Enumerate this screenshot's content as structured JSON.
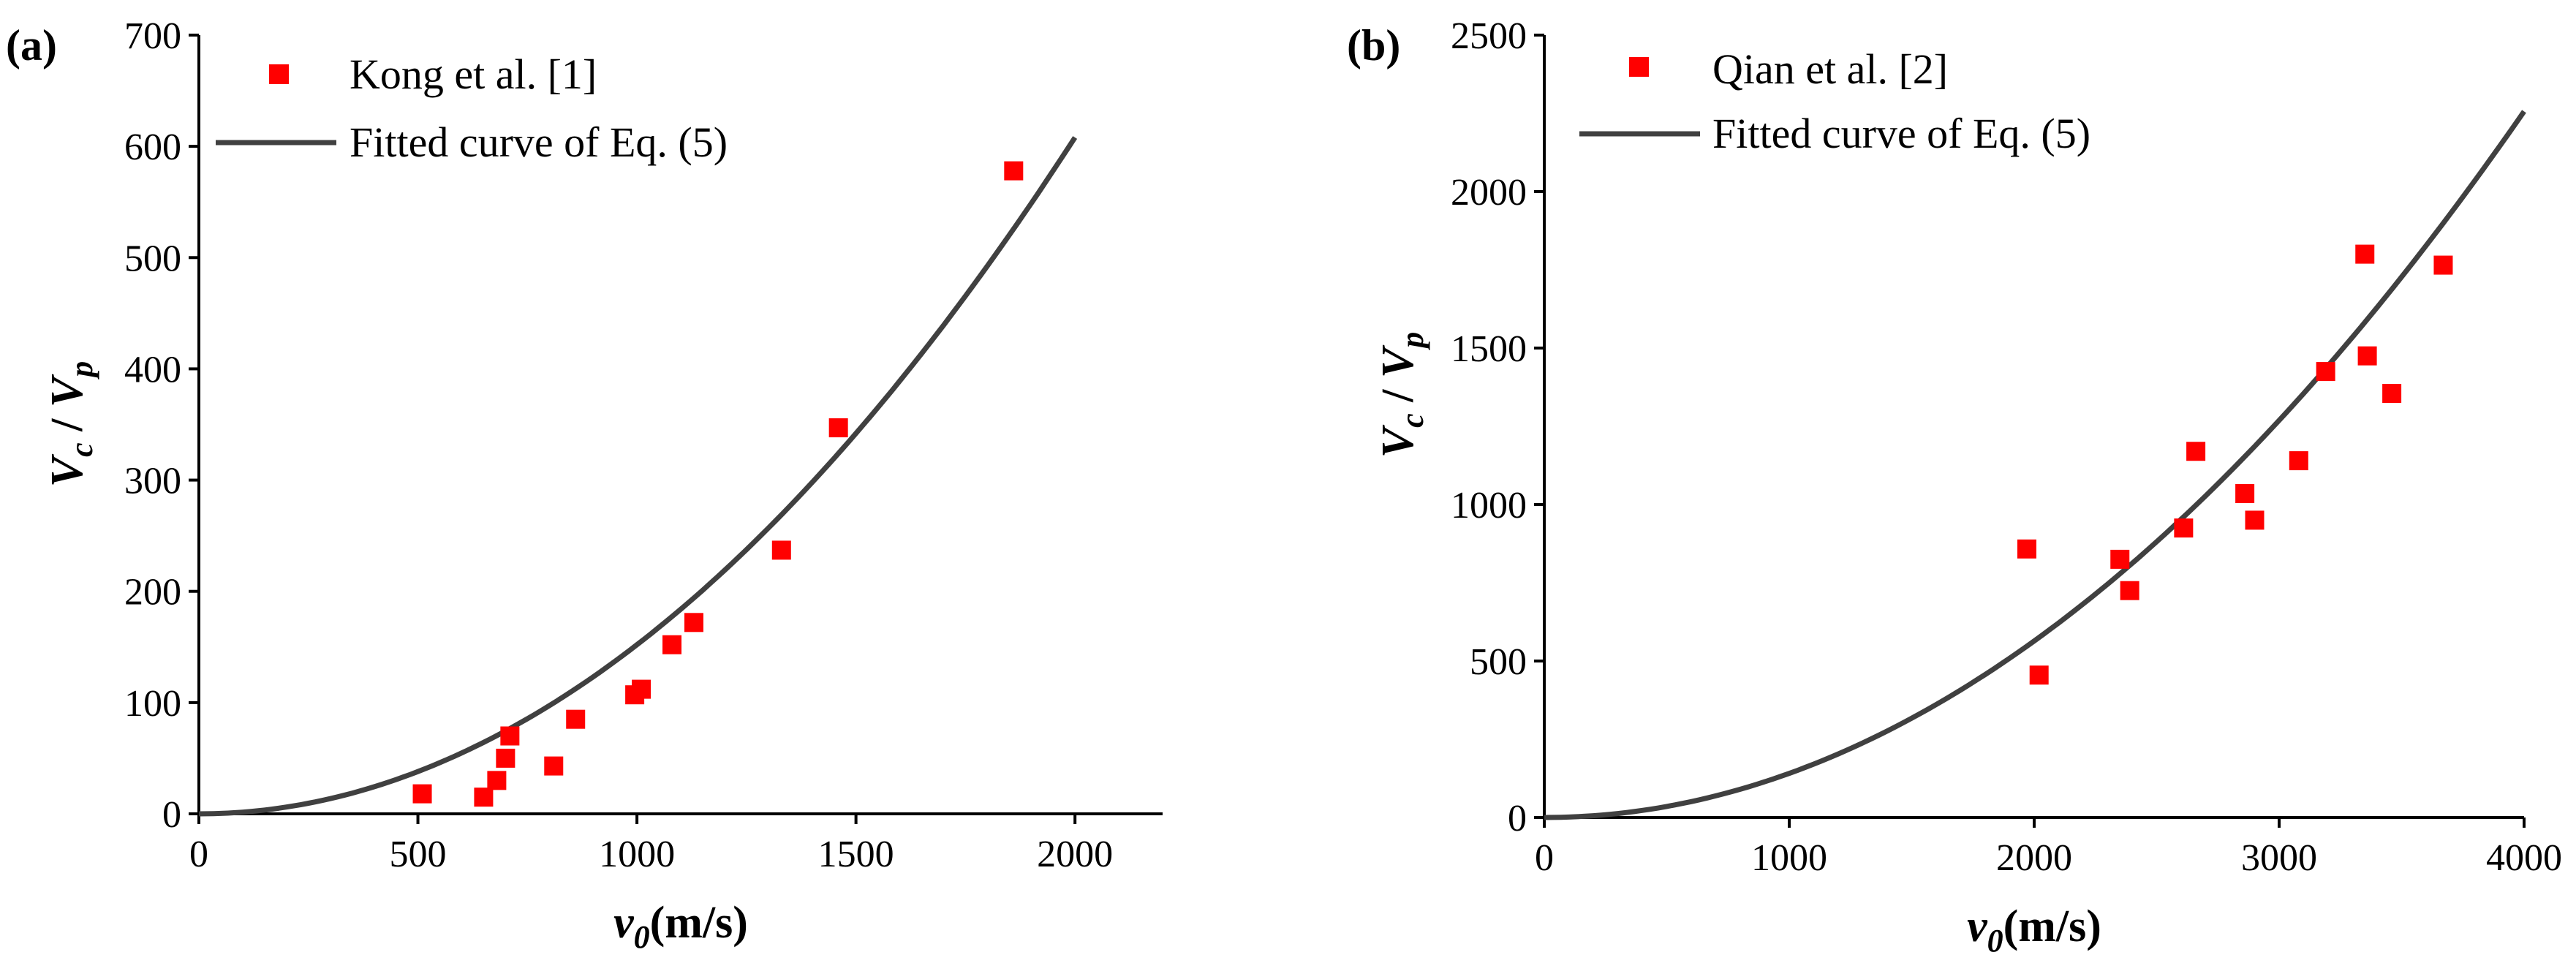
{
  "colors": {
    "marker": "#ff0000",
    "fit": "#404040",
    "axis": "#000000"
  },
  "chart_data": [
    {
      "type": "scatter",
      "panel_label": "(a)",
      "xlabel": {
        "main": "v",
        "sub": "0",
        "unit": "(m/s)"
      },
      "ylabel": {
        "a": "V",
        "a_sub": "c",
        "slash": " / ",
        "b": "V",
        "b_sub": "p"
      },
      "xlim": [
        0,
        2200
      ],
      "ylim": [
        0,
        700
      ],
      "xticks": [
        0,
        500,
        1000,
        1500,
        2000
      ],
      "xtick_labels": [
        "0",
        "500",
        "1000",
        "1500",
        "2000"
      ],
      "yticks": [
        0,
        100,
        200,
        300,
        400,
        500,
        600,
        700
      ],
      "ytick_labels": [
        "0",
        "100",
        "200",
        "300",
        "400",
        "500",
        "600",
        "700"
      ],
      "legend": {
        "position": "top-left",
        "entries": [
          {
            "label": "Kong et al. [1]",
            "kind": "marker"
          },
          {
            "label": "Fitted curve of Eq. (5)",
            "kind": "line"
          }
        ]
      },
      "series": [
        {
          "name": "Kong et al. [1]",
          "kind": "scatter",
          "points": [
            [
              510,
              18
            ],
            [
              650,
              15
            ],
            [
              680,
              30
            ],
            [
              700,
              50
            ],
            [
              710,
              70
            ],
            [
              810,
              43
            ],
            [
              860,
              85
            ],
            [
              995,
              107
            ],
            [
              1010,
              112
            ],
            [
              1080,
              152
            ],
            [
              1130,
              172
            ],
            [
              1330,
              237
            ],
            [
              1460,
              347
            ],
            [
              1860,
              578
            ]
          ]
        },
        {
          "name": "Fitted curve of Eq. (5)",
          "kind": "curve",
          "formula": "power",
          "coef": 0.000152,
          "exponent": 2,
          "x_range": [
            0,
            2000
          ]
        }
      ]
    },
    {
      "type": "scatter",
      "panel_label": "(b)",
      "xlabel": {
        "main": "v",
        "sub": "0",
        "unit": "(m/s)"
      },
      "ylabel": {
        "a": "V",
        "a_sub": "c",
        "slash": " / ",
        "b": "V",
        "b_sub": "p"
      },
      "xlim": [
        0,
        4000
      ],
      "ylim": [
        0,
        2500
      ],
      "xticks": [
        0,
        1000,
        2000,
        3000,
        4000
      ],
      "xtick_labels": [
        "0",
        "1000",
        "2000",
        "3000",
        "4000"
      ],
      "yticks": [
        0,
        500,
        1000,
        1500,
        2000,
        2500
      ],
      "ytick_labels": [
        "0",
        "500",
        "1000",
        "1500",
        "2000",
        "2500"
      ],
      "legend": {
        "position": "top-left",
        "entries": [
          {
            "label": "Qian et al. [2]",
            "kind": "marker"
          },
          {
            "label": "Fitted curve of Eq. (5)",
            "kind": "line"
          }
        ]
      },
      "series": [
        {
          "name": "Qian et al. [2]",
          "kind": "scatter",
          "points": [
            [
              1970,
              858
            ],
            [
              2020,
              455
            ],
            [
              2350,
              825
            ],
            [
              2390,
              725
            ],
            [
              2610,
              925
            ],
            [
              2660,
              1170
            ],
            [
              2860,
              1035
            ],
            [
              2900,
              950
            ],
            [
              3080,
              1140
            ],
            [
              3190,
              1425
            ],
            [
              3350,
              1800
            ],
            [
              3360,
              1475
            ],
            [
              3460,
              1355
            ],
            [
              3670,
              1765
            ]
          ]
        },
        {
          "name": "Fitted curve of Eq. (5)",
          "kind": "curve",
          "formula": "power",
          "coef": 0.000141,
          "exponent": 2,
          "x_range": [
            0,
            4000
          ]
        }
      ]
    }
  ]
}
